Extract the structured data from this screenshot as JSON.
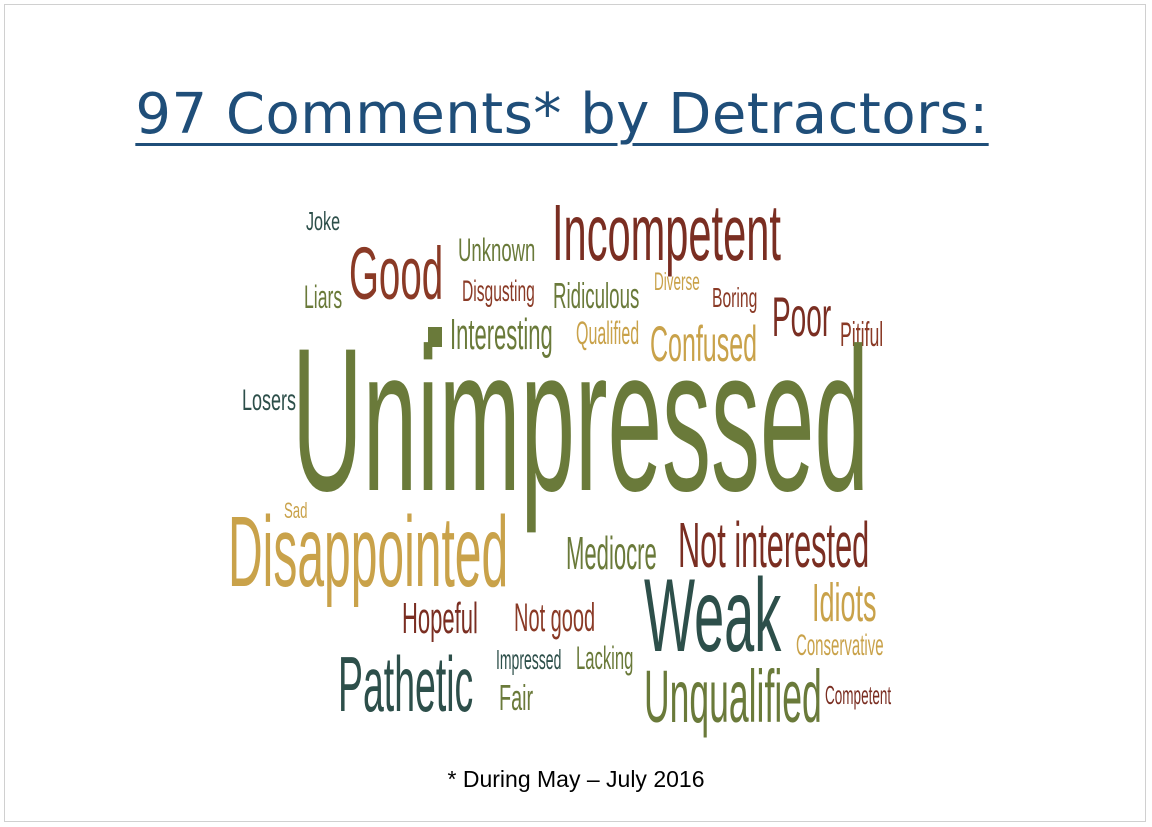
{
  "title": "97 Comments* by Detractors:",
  "footnote": "* During May – July 2016",
  "colors": {
    "olive": "#6a7a3a",
    "maroon": "#7a2e22",
    "teal": "#2d4f4a",
    "gold": "#c9a24a",
    "brown": "#8a3a26"
  },
  "words": [
    {
      "text": "Joke"
    },
    {
      "text": "Incompetent"
    },
    {
      "text": "Unknown"
    },
    {
      "text": "Good"
    },
    {
      "text": "Liars"
    },
    {
      "text": "Disgusting"
    },
    {
      "text": "Ridiculous"
    },
    {
      "text": "Diverse"
    },
    {
      "text": "Boring"
    },
    {
      "text": "Poor"
    },
    {
      "text": "Pitiful"
    },
    {
      "text": "Interesting"
    },
    {
      "text": "Qualified"
    },
    {
      "text": "Confused"
    },
    {
      "text": "Losers"
    },
    {
      "text": "Unimpressed"
    },
    {
      "text": "Sad"
    },
    {
      "text": "Disappointed"
    },
    {
      "text": "Mediocre"
    },
    {
      "text": "Not interested"
    },
    {
      "text": "Weak"
    },
    {
      "text": "Idiots"
    },
    {
      "text": "Hopeful"
    },
    {
      "text": "Not good"
    },
    {
      "text": "Conservative"
    },
    {
      "text": "Pathetic"
    },
    {
      "text": "Impressed"
    },
    {
      "text": "Lacking"
    },
    {
      "text": "Fair"
    },
    {
      "text": "Unqualified"
    },
    {
      "text": "Competent"
    }
  ]
}
